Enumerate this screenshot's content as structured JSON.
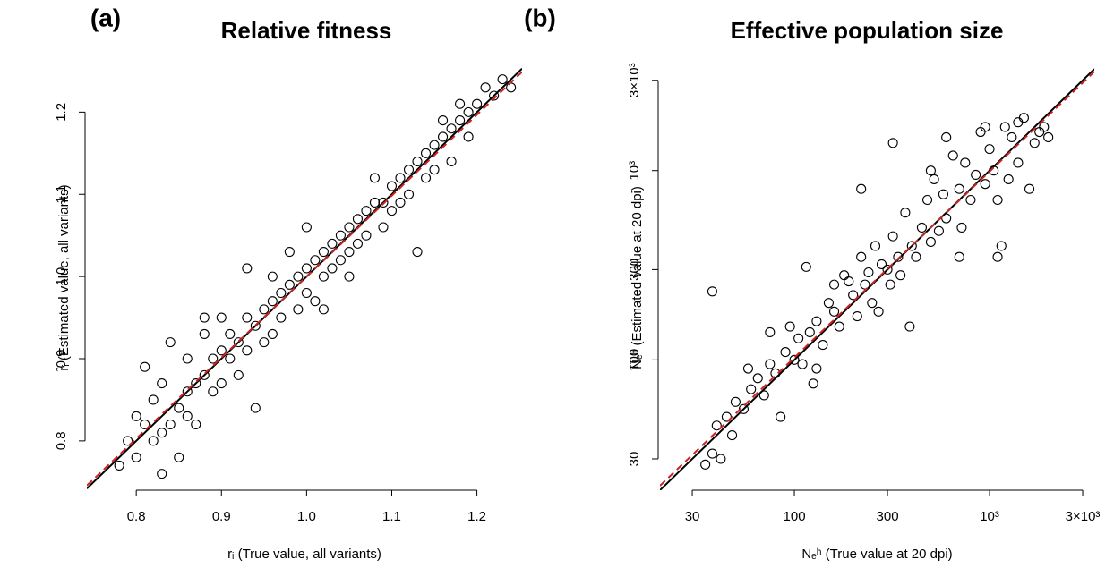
{
  "chart_data": [
    {
      "type": "scatter",
      "panel_label": "(a)",
      "title": "Relative fitness",
      "xlabel": "rᵢ (True value, all variants)",
      "ylabel": "r̂ᵢ (Estimated value, all variants)",
      "log": false,
      "color": "#000000",
      "xlim": [
        0.742,
        1.253
      ],
      "ylim": [
        0.74,
        1.257
      ],
      "xticks": [
        0.8,
        0.9,
        {
          "value": 1.0,
          "label": "1.0"
        },
        1.1,
        1.2
      ],
      "yticks": [
        0.8,
        0.9,
        {
          "value": 1.0,
          "label": "1.0"
        },
        1.1,
        1.2
      ],
      "reference_line": {
        "slope": 1,
        "intercept": 0,
        "color": "#000000"
      },
      "fit_line": {
        "slope": 0.985,
        "intercept": 0.0148,
        "color": "#cc2222"
      },
      "x": [
        0.78,
        0.79,
        0.8,
        0.8,
        0.81,
        0.81,
        0.82,
        0.82,
        0.83,
        0.83,
        0.83,
        0.84,
        0.84,
        0.85,
        0.85,
        0.86,
        0.86,
        0.86,
        0.87,
        0.87,
        0.88,
        0.88,
        0.89,
        0.89,
        0.9,
        0.9,
        0.9,
        0.91,
        0.91,
        0.92,
        0.92,
        0.93,
        0.93,
        0.93,
        0.94,
        0.94,
        0.95,
        0.95,
        0.96,
        0.96,
        0.97,
        0.97,
        0.98,
        0.98,
        0.99,
        0.99,
        1.0,
        1.0,
        1.0,
        1.01,
        1.01,
        1.02,
        1.02,
        1.03,
        1.03,
        1.04,
        1.04,
        1.05,
        1.05,
        1.06,
        1.06,
        1.07,
        1.07,
        1.08,
        1.08,
        1.09,
        1.09,
        1.1,
        1.1,
        1.11,
        1.11,
        1.12,
        1.12,
        1.13,
        1.13,
        1.14,
        1.14,
        1.15,
        1.15,
        1.16,
        1.16,
        1.17,
        1.17,
        1.18,
        1.18,
        1.19,
        1.19,
        1.2,
        1.21,
        1.22,
        1.23,
        1.24,
        0.96,
        1.05,
        0.88,
        1.02
      ],
      "values": [
        0.77,
        0.8,
        0.83,
        0.78,
        0.82,
        0.89,
        0.8,
        0.85,
        0.76,
        0.81,
        0.87,
        0.82,
        0.92,
        0.84,
        0.78,
        0.86,
        0.9,
        0.83,
        0.87,
        0.82,
        0.88,
        0.93,
        0.86,
        0.9,
        0.91,
        0.87,
        0.95,
        0.9,
        0.93,
        0.92,
        0.88,
        0.95,
        0.91,
        1.01,
        0.94,
        0.84,
        0.96,
        0.92,
        0.97,
        0.93,
        0.98,
        0.95,
        0.99,
        1.03,
        1.0,
        0.96,
        1.01,
        0.98,
        1.06,
        1.02,
        0.97,
        1.03,
        1.0,
        1.04,
        1.01,
        1.05,
        1.02,
        1.06,
        1.03,
        1.07,
        1.04,
        1.08,
        1.05,
        1.09,
        1.12,
        1.09,
        1.06,
        1.11,
        1.08,
        1.12,
        1.09,
        1.13,
        1.1,
        1.14,
        1.03,
        1.15,
        1.12,
        1.16,
        1.13,
        1.17,
        1.19,
        1.18,
        1.14,
        1.19,
        1.21,
        1.2,
        1.17,
        1.21,
        1.23,
        1.22,
        1.24,
        1.23,
        1.0,
        1.0,
        0.95,
        0.96
      ]
    },
    {
      "type": "scatter",
      "panel_label": "(b)",
      "title": "Effective population size",
      "xlabel": "Nₑʰ (True value at 20 dpi)",
      "ylabel": "N̂ₑʰ (Estimated value at 20 dpi)",
      "log": true,
      "color": "#000000",
      "xlim": [
        20.5,
        3440
      ],
      "ylim": [
        20.5,
        3600
      ],
      "xticks": [
        30,
        100,
        300,
        {
          "value": 1000,
          "label": "10³"
        },
        {
          "value": 3000,
          "label": "3×10³"
        }
      ],
      "yticks": [
        30,
        100,
        300,
        {
          "value": 1000,
          "label": "10³"
        },
        {
          "value": 3000,
          "label": "3×10³"
        }
      ],
      "reference_line": {
        "slope": 1,
        "intercept": 0,
        "color": "#000000"
      },
      "fit_line": {
        "slope": 0.983,
        "intercept": 0.046,
        "color": "#cc2222"
      },
      "x": [
        35,
        38,
        40,
        42,
        38,
        45,
        48,
        50,
        55,
        58,
        60,
        65,
        70,
        75,
        80,
        85,
        90,
        95,
        100,
        105,
        110,
        115,
        120,
        125,
        130,
        140,
        150,
        160,
        170,
        180,
        190,
        200,
        210,
        220,
        230,
        240,
        250,
        260,
        270,
        280,
        300,
        310,
        320,
        340,
        350,
        370,
        390,
        400,
        420,
        450,
        480,
        500,
        520,
        550,
        580,
        600,
        650,
        700,
        720,
        750,
        800,
        850,
        900,
        950,
        1000,
        1050,
        1100,
        1150,
        1200,
        1250,
        1300,
        1400,
        1500,
        1600,
        1700,
        1800,
        1900,
        2000,
        1100,
        600,
        220,
        320,
        700,
        160,
        130,
        75,
        1400,
        950,
        500
      ],
      "values": [
        28,
        32,
        45,
        30,
        230,
        50,
        40,
        60,
        55,
        90,
        70,
        80,
        65,
        95,
        85,
        50,
        110,
        150,
        100,
        130,
        95,
        310,
        140,
        75,
        160,
        120,
        200,
        180,
        150,
        280,
        260,
        220,
        170,
        350,
        250,
        290,
        200,
        400,
        180,
        320,
        300,
        250,
        450,
        350,
        280,
        600,
        150,
        400,
        350,
        500,
        700,
        420,
        900,
        480,
        750,
        560,
        1200,
        800,
        500,
        1100,
        700,
        950,
        1600,
        850,
        1300,
        1000,
        700,
        400,
        1700,
        900,
        1500,
        1100,
        1900,
        800,
        1400,
        1600,
        1700,
        1500,
        350,
        1500,
        800,
        1400,
        350,
        250,
        90,
        140,
        1800,
        1700,
        1000
      ]
    }
  ]
}
